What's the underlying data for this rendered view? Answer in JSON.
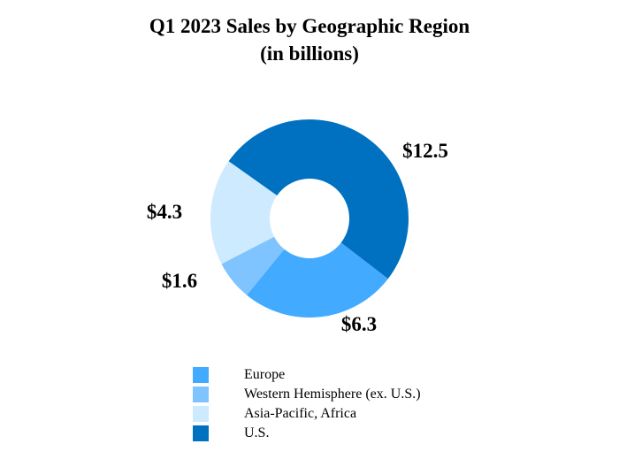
{
  "chart_data": {
    "type": "pie",
    "title": "Q1 2023 Sales by Geographic Region",
    "subtitle": "(in billions)",
    "hole": true,
    "legend_position": "bottom",
    "slices": [
      {
        "name": "Europe",
        "value": 6.3,
        "label": "$6.3",
        "color": "#42aaff"
      },
      {
        "name": "Western Hemisphere (ex. U.S.)",
        "value": 1.6,
        "label": "$1.6",
        "color": "#7fc4ff"
      },
      {
        "name": "Asia-Pacific, Africa",
        "value": 4.3,
        "label": "$4.3",
        "color": "#cdeaff"
      },
      {
        "name": "U.S.",
        "value": 12.5,
        "label": "$12.5",
        "color": "#0070c0"
      }
    ]
  }
}
